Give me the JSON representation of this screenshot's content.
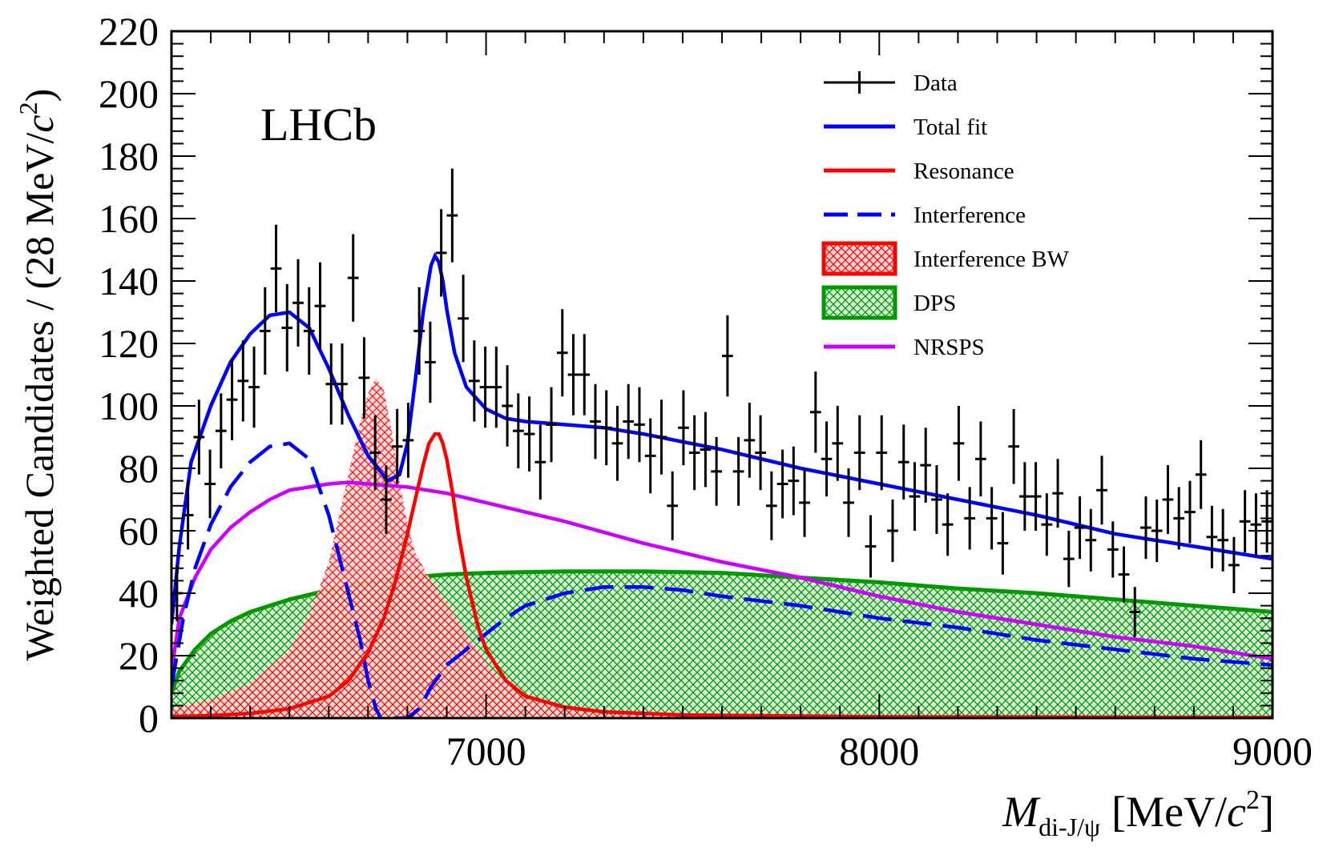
{
  "chart_data": {
    "type": "line",
    "experiment_label": "LHCb",
    "ylabel": "Weighted Candidates / (28 MeV/c²)",
    "ylabel_parts": {
      "main": "Weighted Candidates / (28 MeV/",
      "c": "c",
      "sup": "2",
      "close": ")"
    },
    "xlabel": "M_di-J/ψ [MeV/c²]",
    "xlabel_parts": {
      "M": "M",
      "sub": "di-J/ψ",
      "unit": "[MeV/",
      "c": "c",
      "sup": "2",
      "close": "]"
    },
    "xlim": [
      6200,
      9000
    ],
    "ylim": [
      0,
      220
    ],
    "x_ticks": [
      7000,
      8000,
      9000
    ],
    "y_ticks": [
      0,
      20,
      40,
      60,
      80,
      100,
      120,
      140,
      160,
      180,
      200,
      220
    ],
    "colors": {
      "data": "#000000",
      "total_fit": "#0000ff",
      "resonance": "#ff0000",
      "interference": "#0000ff",
      "interference_bw": "#ff0000",
      "dps": "#009900",
      "nrsps": "#cc00ff"
    },
    "legend": [
      {
        "key": "data",
        "label": "Data"
      },
      {
        "key": "total_fit",
        "label": "Total fit"
      },
      {
        "key": "resonance",
        "label": "Resonance"
      },
      {
        "key": "interference",
        "label": "Interference"
      },
      {
        "key": "interference_bw",
        "label": "Interference BW"
      },
      {
        "key": "dps",
        "label": "DPS"
      },
      {
        "key": "nrsps",
        "label": "NRSPS"
      }
    ],
    "series": [
      {
        "name": "Total fit",
        "key": "total_fit",
        "style": "solid",
        "x": [
          6200,
          6220,
          6250,
          6300,
          6350,
          6400,
          6450,
          6500,
          6550,
          6600,
          6650,
          6700,
          6750,
          6780,
          6800,
          6820,
          6840,
          6860,
          6870,
          6880,
          6890,
          6900,
          6920,
          6950,
          7000,
          7050,
          7100,
          7200,
          7300,
          7400,
          7600,
          7800,
          8000,
          8200,
          8400,
          8600,
          8800,
          9000
        ],
        "y": [
          30,
          55,
          82,
          100,
          114,
          123,
          129,
          130,
          125,
          112,
          97,
          84,
          76,
          78,
          88,
          108,
          130,
          145,
          148,
          146,
          140,
          131,
          117,
          106,
          99,
          96,
          95,
          94,
          93,
          91,
          86,
          80,
          75,
          70,
          65,
          59,
          55,
          51
        ]
      },
      {
        "name": "Resonance",
        "key": "resonance",
        "style": "solid",
        "x": [
          6200,
          6300,
          6400,
          6500,
          6600,
          6650,
          6700,
          6740,
          6770,
          6800,
          6820,
          6840,
          6855,
          6870,
          6880,
          6890,
          6900,
          6915,
          6930,
          6950,
          6980,
          7000,
          7050,
          7100,
          7200,
          7300,
          7500,
          8000,
          9000
        ],
        "y": [
          0.5,
          0.8,
          1.5,
          3,
          7,
          12,
          21,
          32,
          44,
          59,
          70,
          81,
          88,
          91,
          91,
          88,
          83,
          72,
          59,
          45,
          29,
          22,
          12,
          7,
          3.5,
          2,
          1,
          0.4,
          0.2
        ]
      },
      {
        "name": "Interference",
        "key": "interference",
        "style": "dashed",
        "x": [
          6200,
          6230,
          6260,
          6300,
          6350,
          6400,
          6450,
          6500,
          6550,
          6600,
          6640,
          6680,
          6700,
          6720,
          6740,
          6760,
          6790,
          6800,
          6830,
          6860,
          6900,
          6950,
          7000,
          7050,
          7100,
          7200,
          7300,
          7400,
          7500,
          7600,
          7800,
          8000,
          8200,
          8400,
          8600,
          8800,
          9000
        ],
        "y": [
          10,
          32,
          48,
          62,
          74,
          82,
          87,
          88,
          83,
          65,
          45,
          25,
          12,
          3,
          -2,
          0,
          0,
          0,
          3,
          10,
          17,
          22,
          27,
          32,
          36,
          40,
          42,
          42,
          41,
          39,
          36,
          32,
          29,
          25,
          22,
          19,
          17
        ]
      },
      {
        "name": "NRSPS",
        "key": "nrsps",
        "style": "solid",
        "x": [
          6200,
          6220,
          6260,
          6300,
          6350,
          6400,
          6450,
          6500,
          6550,
          6600,
          6650,
          6700,
          6800,
          6900,
          7000,
          7200,
          7400,
          7600,
          7800,
          8000,
          8200,
          8400,
          8600,
          8800,
          9000
        ],
        "y": [
          15,
          32,
          45,
          54,
          61,
          66,
          70,
          73,
          74,
          75,
          75.5,
          75,
          74,
          72,
          69,
          63,
          56,
          50,
          45,
          39,
          34,
          30,
          26,
          23,
          19
        ]
      },
      {
        "name": "Interference BW",
        "key": "interference_bw",
        "style": "hatched",
        "x": [
          6200,
          6300,
          6400,
          6500,
          6550,
          6600,
          6650,
          6680,
          6700,
          6720,
          6740,
          6760,
          6780,
          6800,
          6820,
          6850,
          6900,
          6950,
          7000,
          7050,
          7100,
          7150,
          7200,
          7300,
          7400,
          7600,
          8000,
          9000
        ],
        "y": [
          3,
          6,
          11,
          22,
          33,
          50,
          78,
          95,
          104,
          109,
          105,
          92,
          76,
          62,
          53,
          46,
          37,
          27,
          18,
          11,
          7,
          4.5,
          3,
          2,
          1.5,
          1,
          0.5,
          0.2
        ]
      },
      {
        "name": "DPS",
        "key": "dps",
        "style": "hatched",
        "x": [
          6200,
          6220,
          6260,
          6300,
          6350,
          6400,
          6500,
          6600,
          6700,
          6800,
          6900,
          7000,
          7200,
          7400,
          7600,
          7800,
          8000,
          8200,
          8400,
          8600,
          8800,
          9000
        ],
        "y": [
          8,
          15,
          22,
          27,
          31,
          34,
          38,
          41,
          43.5,
          45,
          46,
          46.5,
          47,
          47,
          46.5,
          45,
          43.5,
          41.5,
          40,
          38,
          36,
          34
        ]
      }
    ],
    "data_points": {
      "bin_width": 28,
      "x": [
        6214,
        6242,
        6270,
        6298,
        6326,
        6354,
        6382,
        6410,
        6438,
        6466,
        6494,
        6522,
        6550,
        6578,
        6606,
        6634,
        6662,
        6690,
        6718,
        6746,
        6774,
        6802,
        6830,
        6858,
        6886,
        6914,
        6942,
        6970,
        6998,
        7026,
        7054,
        7082,
        7110,
        7138,
        7166,
        7194,
        7222,
        7250,
        7278,
        7306,
        7334,
        7362,
        7390,
        7418,
        7446,
        7474,
        7502,
        7530,
        7558,
        7586,
        7614,
        7642,
        7670,
        7698,
        7726,
        7754,
        7782,
        7810,
        7838,
        7866,
        7894,
        7922,
        7950,
        7978,
        8006,
        8034,
        8062,
        8090,
        8118,
        8146,
        8174,
        8202,
        8230,
        8258,
        8286,
        8314,
        8342,
        8370,
        8398,
        8426,
        8454,
        8482,
        8510,
        8538,
        8566,
        8594,
        8622,
        8650,
        8678,
        8706,
        8734,
        8762,
        8790,
        8818,
        8846,
        8874,
        8902,
        8930,
        8958,
        8986
      ],
      "y": [
        40,
        65,
        90,
        75,
        92,
        102,
        108,
        106,
        124,
        144,
        125,
        133,
        124,
        132,
        107,
        107,
        141,
        109,
        85,
        70,
        87,
        89,
        124,
        114,
        149,
        161,
        128,
        108,
        106,
        106,
        100,
        92,
        91,
        82,
        94,
        117,
        110,
        110,
        95,
        93,
        88,
        95,
        94,
        84,
        90,
        68,
        93,
        85,
        86,
        79,
        116,
        79,
        89,
        85,
        68,
        75,
        76,
        69,
        98,
        83,
        88,
        69,
        85,
        55,
        85,
        60,
        82,
        71,
        81,
        70,
        62,
        88,
        64,
        83,
        64,
        56,
        87,
        71,
        71,
        62,
        72,
        51,
        61,
        57,
        73,
        54,
        46,
        34,
        61,
        60,
        70,
        64,
        66,
        78,
        58,
        57,
        49,
        63,
        62,
        63
      ],
      "err": [
        9,
        11,
        12,
        11,
        12,
        13,
        13,
        13,
        14,
        14,
        14,
        14,
        14,
        14,
        13,
        13,
        14,
        13,
        12,
        11,
        12,
        12,
        14,
        13,
        14,
        15,
        14,
        13,
        13,
        13,
        13,
        12,
        12,
        12,
        12,
        14,
        13,
        13,
        12,
        12,
        12,
        12,
        12,
        12,
        12,
        11,
        12,
        12,
        12,
        11,
        13,
        11,
        12,
        12,
        11,
        11,
        11,
        11,
        13,
        12,
        12,
        11,
        12,
        10,
        12,
        10,
        12,
        11,
        12,
        11,
        10,
        12,
        10,
        12,
        10,
        10,
        12,
        11,
        11,
        10,
        11,
        9,
        10,
        10,
        11,
        9,
        9,
        8,
        10,
        10,
        11,
        10,
        10,
        11,
        10,
        10,
        9,
        10,
        10,
        10
      ]
    }
  }
}
